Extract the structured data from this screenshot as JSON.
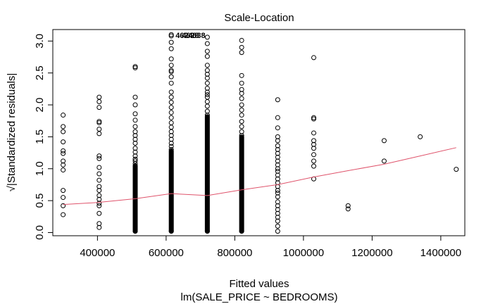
{
  "chart_data": {
    "type": "scatter",
    "title": "Scale-Location",
    "xlabel": "Fitted values",
    "sublabel": "lm(SALE_PRICE ~ BEDROOMS)",
    "ylabel": "√|Standardized residuals|",
    "xlim": [
      270000,
      1470000
    ],
    "ylim": [
      -0.05,
      3.18
    ],
    "grid": false,
    "x_ticks": [
      400000,
      600000,
      800000,
      1000000,
      1200000,
      1400000
    ],
    "x_tick_labels": [
      "400000",
      "600000",
      "800000",
      "1000000",
      "1200000",
      "1400000"
    ],
    "y_ticks": [
      0.0,
      0.5,
      1.0,
      1.5,
      2.0,
      2.5,
      3.0
    ],
    "y_tick_labels": [
      "0.0",
      "0.5",
      "1.0",
      "1.5",
      "2.0",
      "2.5",
      "3.0"
    ],
    "point_labels": [
      "4624",
      "4628",
      "4638"
    ],
    "smooth_color": "#df536b",
    "columns": [
      {
        "x": 300000,
        "values": [
          0.28,
          0.42,
          0.55,
          0.66,
          0.98,
          1.06,
          1.12,
          1.24,
          1.28,
          1.42,
          1.58,
          1.66,
          1.84
        ]
      },
      {
        "x": 405000,
        "values": [
          0.08,
          0.14,
          0.3,
          0.42,
          0.46,
          0.52,
          0.58,
          0.66,
          0.72,
          0.82,
          0.92,
          1.02,
          1.16,
          1.2,
          1.55,
          1.62,
          1.72,
          1.74,
          1.96,
          2.05,
          2.12
        ]
      },
      {
        "x": 510000,
        "values": [
          1.08,
          1.12,
          1.15,
          1.2,
          1.26,
          1.32,
          1.4,
          1.46,
          1.52,
          1.58,
          1.66,
          1.76,
          1.86,
          2.0,
          2.12,
          2.58,
          2.6
        ],
        "dense_to": 1.05
      },
      {
        "x": 615000,
        "values": [
          1.3,
          1.35,
          1.4,
          1.46,
          1.52,
          1.58,
          1.65,
          1.72,
          1.8,
          1.88,
          1.96,
          2.04,
          2.12,
          2.2,
          2.34,
          2.44,
          2.52,
          2.54,
          2.62,
          2.72,
          2.88,
          2.98,
          3.08,
          3.1
        ],
        "dense_to": 1.28
      },
      {
        "x": 720000,
        "values": [
          1.84,
          1.9,
          1.98,
          2.05,
          2.12,
          2.16,
          2.2,
          2.26,
          2.34,
          2.42,
          2.48,
          2.54,
          2.62,
          2.76,
          2.84,
          2.96,
          3.06
        ],
        "dense_to": 1.82
      },
      {
        "x": 820000,
        "values": [
          1.52,
          1.58,
          1.66,
          1.74,
          1.84,
          1.92,
          2.0,
          2.1,
          2.18,
          2.24,
          2.34,
          2.46,
          2.82,
          2.9,
          3.01
        ],
        "dense_to": 1.5
      },
      {
        "x": 925000,
        "values": [
          0.02,
          0.1,
          0.18,
          0.24,
          0.3,
          0.36,
          0.42,
          0.48,
          0.56,
          0.62,
          0.66,
          0.72,
          0.78,
          0.84,
          0.9,
          0.96,
          1.0,
          1.06,
          1.12,
          1.18,
          1.24,
          1.3,
          1.36,
          1.44,
          1.5,
          1.64,
          1.8,
          2.08
        ]
      },
      {
        "x": 1030000,
        "values": [
          0.84,
          1.04,
          1.12,
          1.22,
          1.32,
          1.38,
          1.44,
          1.56,
          1.78,
          1.8,
          2.74
        ]
      },
      {
        "x": 1130000,
        "values": [
          0.37,
          0.42
        ]
      },
      {
        "x": 1235000,
        "values": [
          1.12,
          1.44
        ]
      },
      {
        "x": 1340000,
        "values": [
          1.5
        ]
      },
      {
        "x": 1445000,
        "values": [
          0.99
        ]
      }
    ],
    "smooth_line": {
      "x": [
        300000,
        400000,
        510000,
        615000,
        720000,
        820000,
        925000,
        1030000,
        1130000,
        1235000,
        1340000,
        1445000
      ],
      "y": [
        0.44,
        0.47,
        0.53,
        0.61,
        0.58,
        0.67,
        0.75,
        0.87,
        0.97,
        1.07,
        1.2,
        1.33
      ]
    }
  }
}
